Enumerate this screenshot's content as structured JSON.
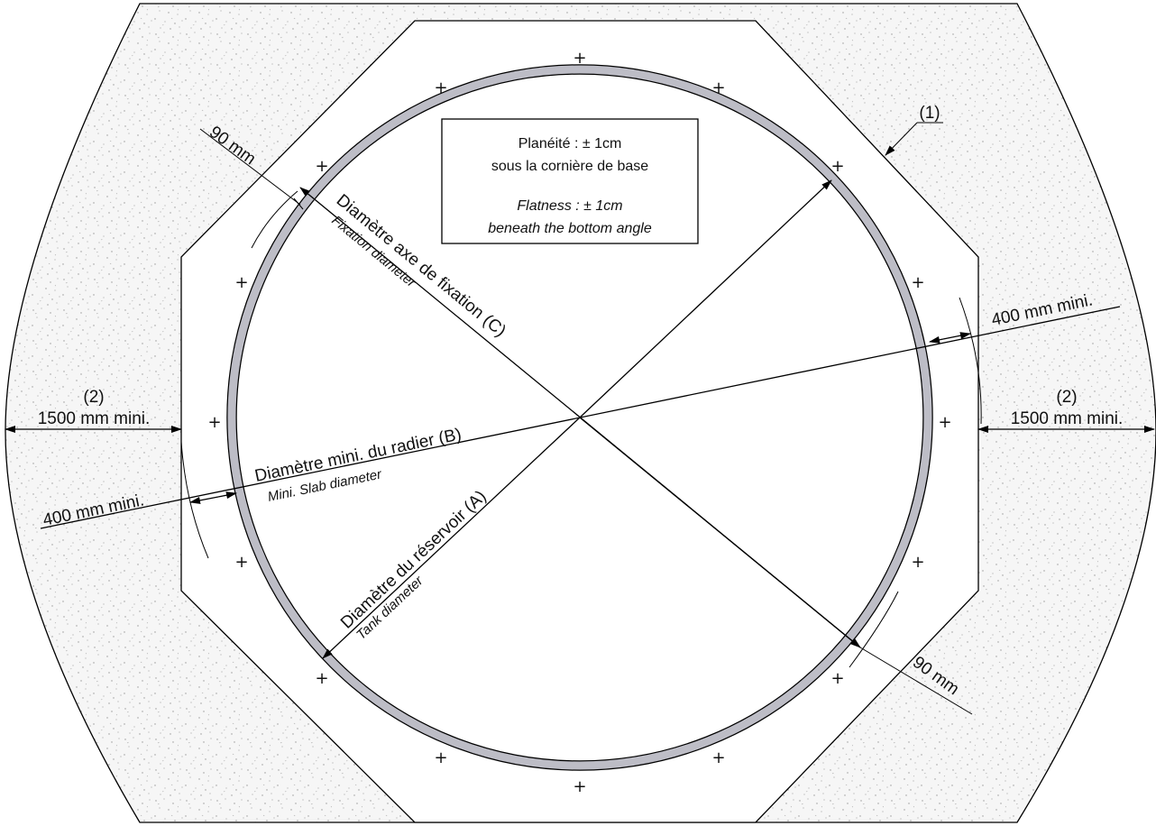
{
  "flatness_note": {
    "fr_line1": "Planéité : ± 1cm",
    "fr_line2": "sous la cornière de base",
    "en_line1": "Flatness : ± 1cm",
    "en_line2": "beneath the bottom angle"
  },
  "labels": {
    "fixation_fr": "Diamètre axe de fixation (C)",
    "fixation_en": "Fixation diameter",
    "slab_fr": "Diamètre mini. du radier (B)",
    "slab_en": "Mini. Slab diameter",
    "tank_fr": "Diamètre du réservoir (A)",
    "tank_en": "Tank diameter"
  },
  "dimensions": {
    "clearance_top_left": "90 mm",
    "clearance_bottom_right": "90 mm",
    "margin_right": "400 mm mini.",
    "margin_left": "400 mm mini.",
    "ground_left_ref": "(2)",
    "ground_left": "1500 mm mini.",
    "ground_right_ref": "(2)",
    "ground_right": "1500 mm mini.",
    "slab_ref": "(1)"
  },
  "markers": {
    "anchor_symbol": "+"
  },
  "colors": {
    "tank_wall": "#bdbdc6",
    "ground_fill": "#f4f4f4",
    "line": "#000000"
  }
}
